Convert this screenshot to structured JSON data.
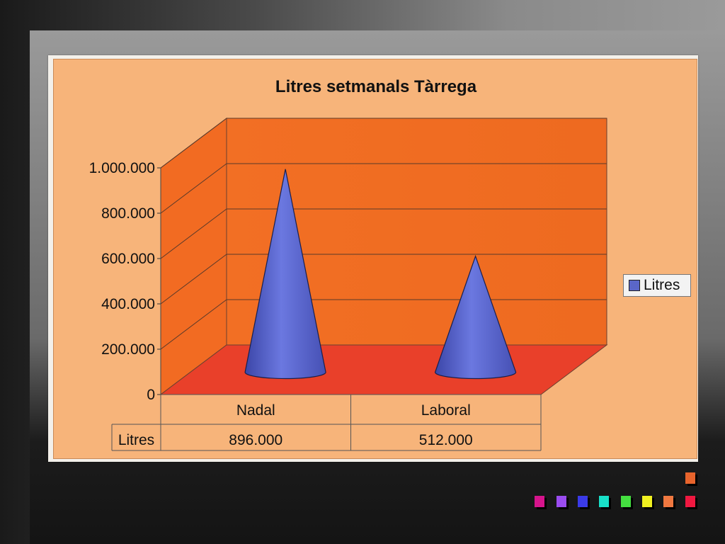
{
  "chart_data": {
    "type": "bar",
    "shape": "cone-3d",
    "title": "Litres setmanals Tàrrega",
    "categories": [
      "Nadal",
      "Laboral"
    ],
    "series": [
      {
        "name": "Litres",
        "values": [
          896000,
          512000
        ],
        "value_labels": [
          "896.000",
          "512.000"
        ],
        "color": "#5a66c8"
      }
    ],
    "ylim": [
      0,
      1000000
    ],
    "yticks": [
      "0",
      "200.000",
      "400.000",
      "600.000",
      "800.000",
      "1.000.000"
    ],
    "data_table_row_label": "Litres",
    "legend": {
      "label": "Litres",
      "placement": "right"
    },
    "grid": true,
    "colors": {
      "chart_bg": "#f7b47a",
      "back_wall": "#f06c22",
      "side_wall": "#f26b22",
      "floor": "#e9402a"
    }
  },
  "decor": {
    "square_colors": [
      "#e8642c",
      "#d6148c",
      "#9a4cf0",
      "#3a3ae8",
      "#18e0c8",
      "#44e040",
      "#f0f020",
      "#f07840",
      "#f01840"
    ]
  }
}
